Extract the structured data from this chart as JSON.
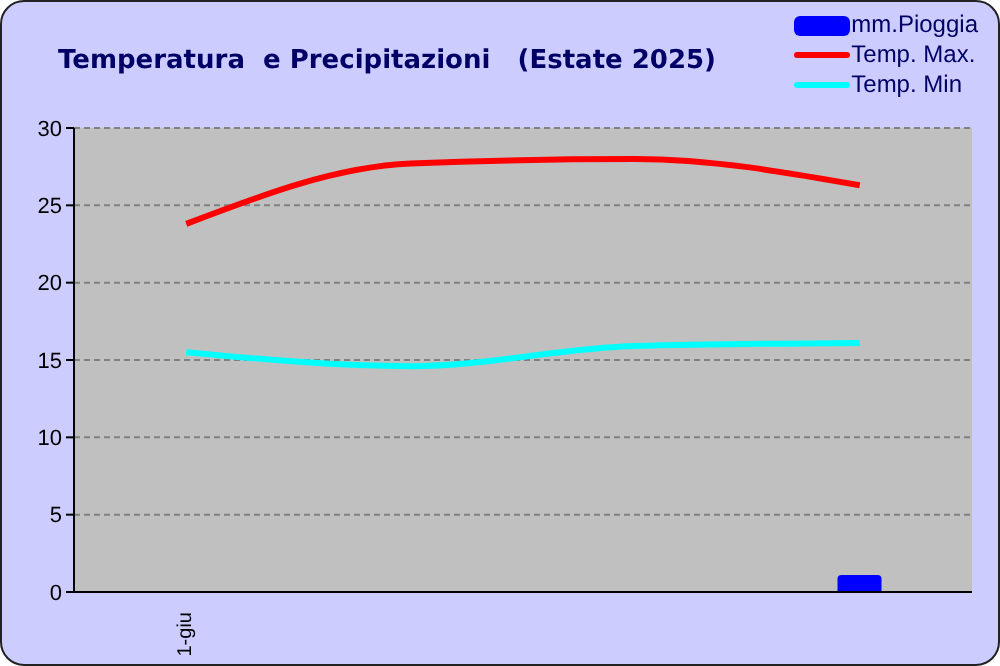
{
  "chart_data": {
    "type": "line",
    "title": "Temperatura  e Precipitazioni   (Estate 2025)",
    "categories": [
      "1-giu",
      null,
      null,
      null
    ],
    "series": [
      {
        "name": "mm.Pioggia",
        "type": "bar",
        "color": "#0000ff",
        "values": [
          null,
          null,
          null,
          1.1
        ]
      },
      {
        "name": "Temp. Max.",
        "color": "#ff0000",
        "values": [
          23.8,
          27.7,
          28.0,
          26.3
        ]
      },
      {
        "name": "Temp. Min",
        "color": "#00ffff",
        "values": [
          15.5,
          14.6,
          15.9,
          16.1
        ]
      }
    ],
    "ylim": [
      0,
      30
    ],
    "yticks": [
      0,
      5,
      10,
      15,
      20,
      25,
      30
    ],
    "grid": "y",
    "legend": "top right",
    "marker": "none"
  }
}
